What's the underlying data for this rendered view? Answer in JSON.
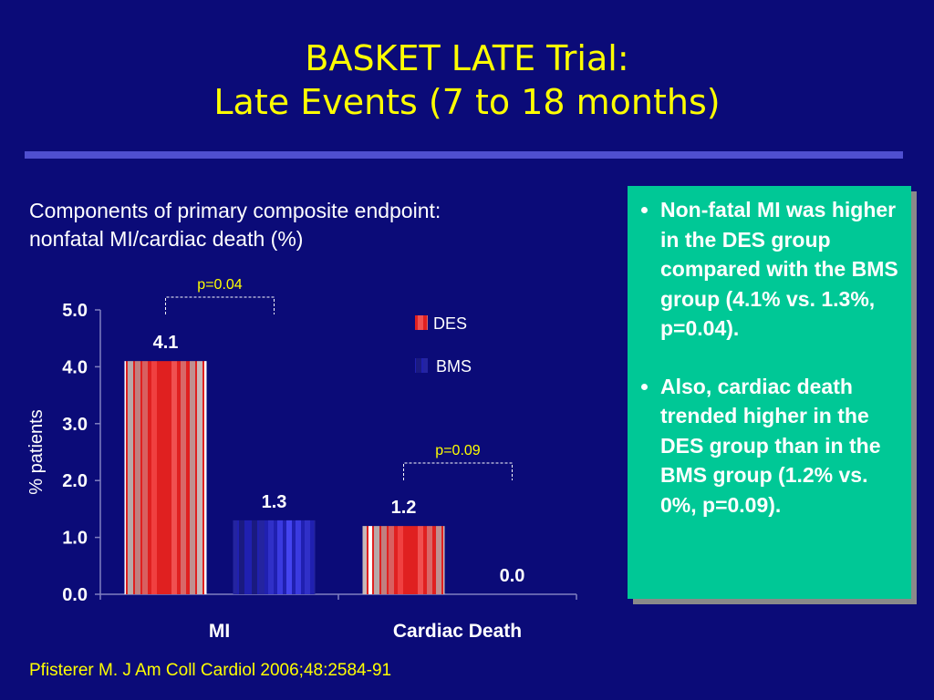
{
  "slide": {
    "title_line1": "BASKET LATE Trial:",
    "title_line2": "Late Events (7 to 18 months)",
    "subtitle_line1": "Components of primary composite endpoint:",
    "subtitle_line2": "nonfatal MI/cardiac death (%)",
    "citation": "Pfisterer M. J Am Coll Cardiol 2006;48:2584-91",
    "colors": {
      "background": "#0b0b78",
      "title": "#ffff00",
      "rule": "#4f4fd0",
      "callout": "#00c896"
    }
  },
  "callout": {
    "bullets": [
      "Non-fatal MI was higher in the DES group compared with the BMS group (4.1% vs. 1.3%, p=0.04).",
      "Also, cardiac death trended higher in the DES group than in the BMS group (1.2% vs. 0%, p=0.09)."
    ]
  },
  "chart_data": {
    "type": "bar",
    "categories": [
      "MI",
      "Cardiac Death"
    ],
    "series": [
      {
        "name": "DES",
        "values": [
          4.1,
          1.2
        ],
        "value_labels": [
          "4.1",
          "1.2"
        ],
        "color": "#e32020"
      },
      {
        "name": "BMS",
        "values": [
          1.3,
          0.0
        ],
        "value_labels": [
          "1.3",
          "0.0"
        ],
        "color": "#2b2bd8"
      }
    ],
    "ylabel": "% patients",
    "ylim": [
      0,
      5
    ],
    "yticks": [
      "0.0",
      "1.0",
      "2.0",
      "3.0",
      "4.0",
      "5.0"
    ],
    "grid": false,
    "legend": "top-right",
    "annotations": [
      {
        "category": "MI",
        "text": "p=0.04"
      },
      {
        "category": "Cardiac Death",
        "text": "p=0.09"
      }
    ]
  }
}
